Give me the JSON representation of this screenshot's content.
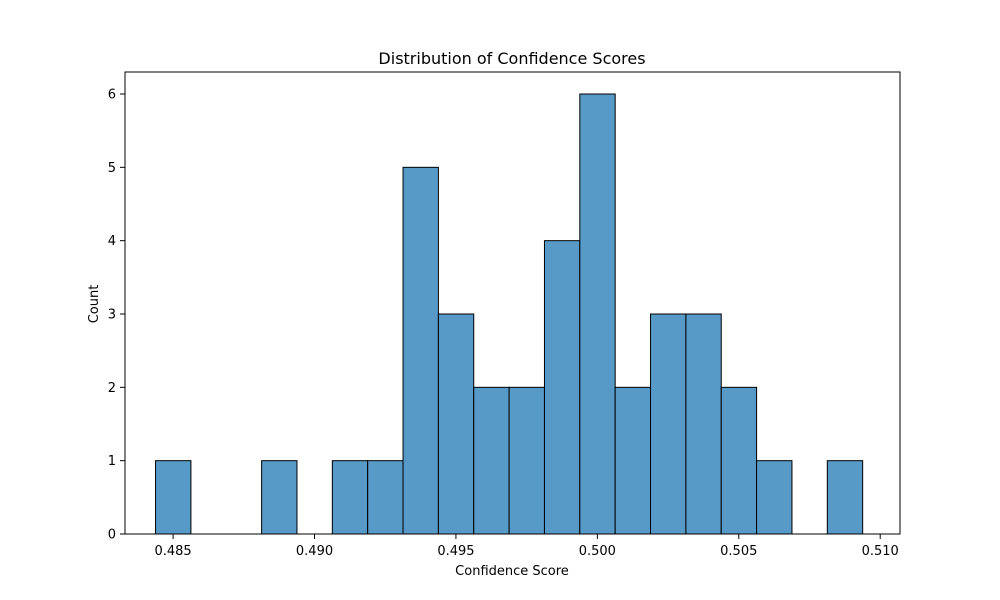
{
  "chart_data": {
    "type": "bar",
    "subtype": "histogram",
    "title": "Distribution of Confidence Scores",
    "xlabel": "Confidence Score",
    "ylabel": "Count",
    "bin_width": 0.00125,
    "bins": [
      {
        "x0": 0.48438,
        "x1": 0.48563,
        "count": 1
      },
      {
        "x0": 0.48813,
        "x1": 0.48938,
        "count": 1
      },
      {
        "x0": 0.49063,
        "x1": 0.49188,
        "count": 1
      },
      {
        "x0": 0.49188,
        "x1": 0.49313,
        "count": 1
      },
      {
        "x0": 0.49313,
        "x1": 0.49438,
        "count": 5
      },
      {
        "x0": 0.49438,
        "x1": 0.49563,
        "count": 3
      },
      {
        "x0": 0.49563,
        "x1": 0.49688,
        "count": 2
      },
      {
        "x0": 0.49688,
        "x1": 0.49813,
        "count": 2
      },
      {
        "x0": 0.49813,
        "x1": 0.49938,
        "count": 4
      },
      {
        "x0": 0.49938,
        "x1": 0.50063,
        "count": 6
      },
      {
        "x0": 0.50063,
        "x1": 0.50188,
        "count": 2
      },
      {
        "x0": 0.50188,
        "x1": 0.50313,
        "count": 3
      },
      {
        "x0": 0.50313,
        "x1": 0.50438,
        "count": 3
      },
      {
        "x0": 0.50438,
        "x1": 0.50563,
        "count": 2
      },
      {
        "x0": 0.50563,
        "x1": 0.50688,
        "count": 1
      },
      {
        "x0": 0.50813,
        "x1": 0.50938,
        "count": 1
      }
    ],
    "xlim": [
      0.4833,
      0.5107
    ],
    "ylim": [
      0,
      6.3
    ],
    "xticks": [
      {
        "value": 0.485,
        "label": "0.485"
      },
      {
        "value": 0.49,
        "label": "0.490"
      },
      {
        "value": 0.495,
        "label": "0.495"
      },
      {
        "value": 0.5,
        "label": "0.500"
      },
      {
        "value": 0.505,
        "label": "0.505"
      },
      {
        "value": 0.51,
        "label": "0.510"
      }
    ],
    "yticks": [
      {
        "value": 0,
        "label": "0"
      },
      {
        "value": 1,
        "label": "1"
      },
      {
        "value": 2,
        "label": "2"
      },
      {
        "value": 3,
        "label": "3"
      },
      {
        "value": 4,
        "label": "4"
      },
      {
        "value": 5,
        "label": "5"
      },
      {
        "value": 6,
        "label": "6"
      }
    ],
    "grid": false,
    "legend": "none",
    "colors": {
      "bar_fill": "#5799c7",
      "bar_edge": "#000000",
      "axis": "#000000"
    }
  }
}
